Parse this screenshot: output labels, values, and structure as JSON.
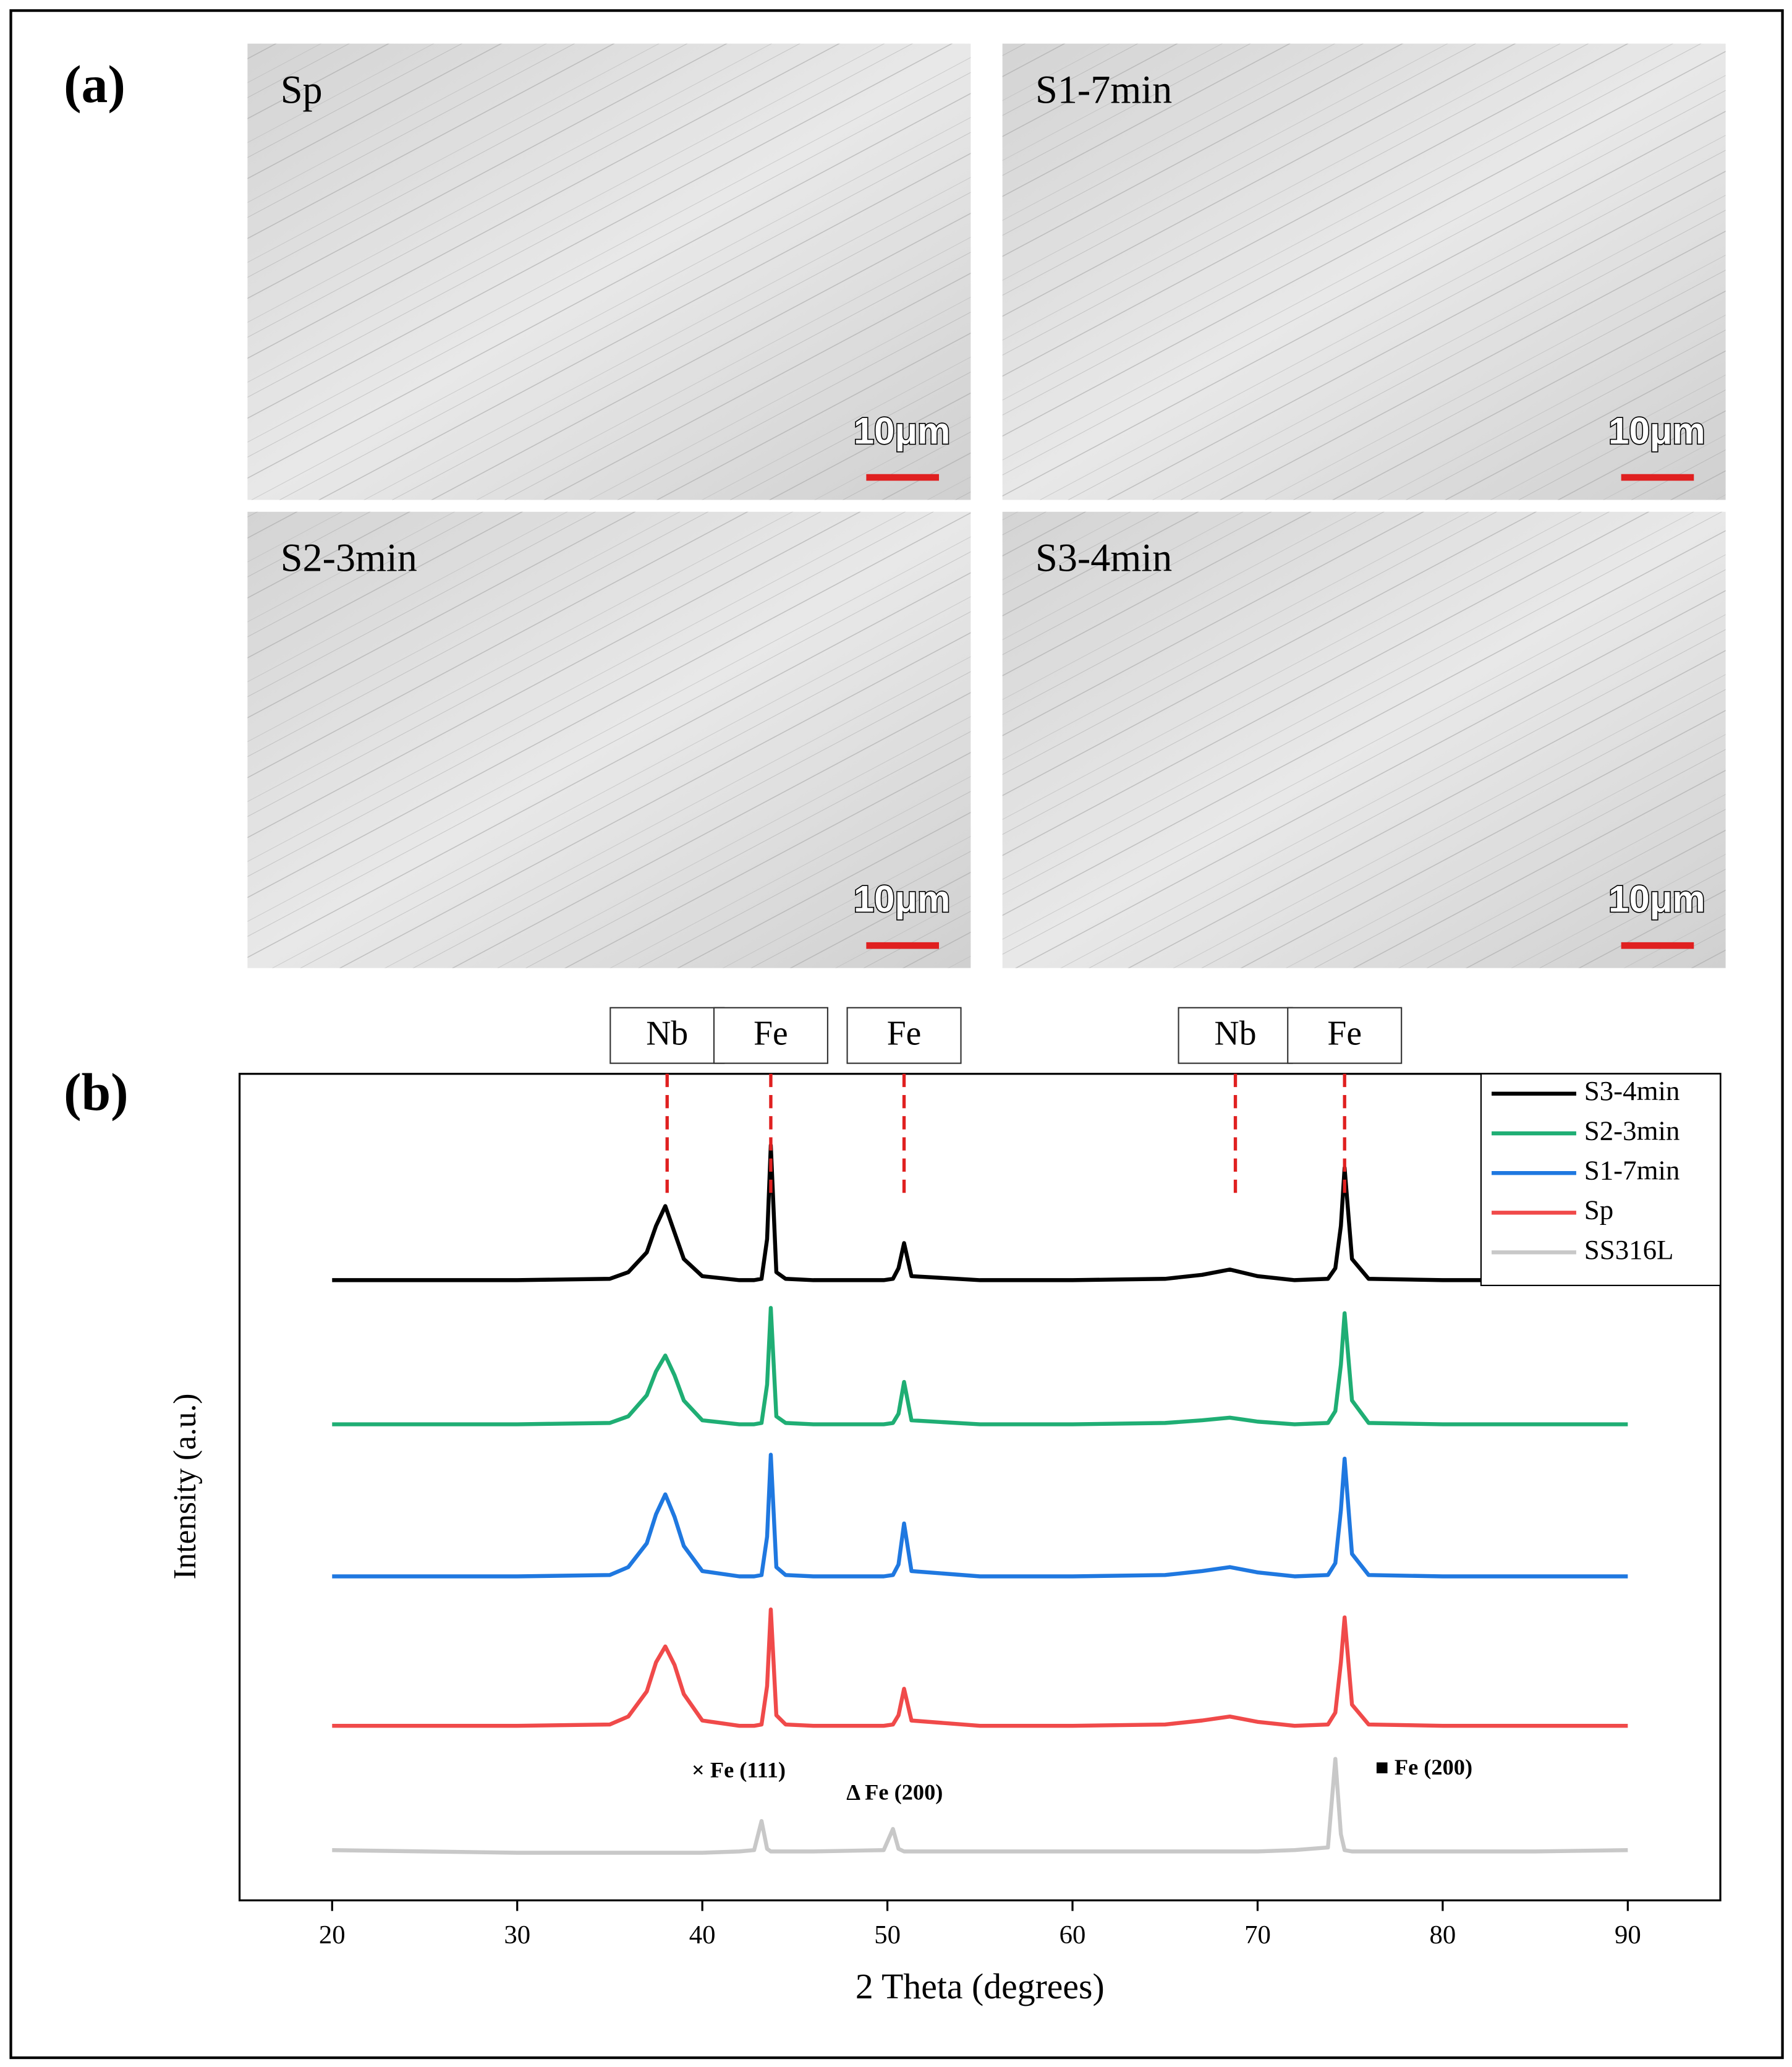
{
  "panel_a": {
    "label": "(a)",
    "images": [
      {
        "title": "Sp",
        "scale": "10μm"
      },
      {
        "title": "S1-7min",
        "scale": "10μm"
      },
      {
        "title": "S2-3min",
        "scale": "10μm"
      },
      {
        "title": "S3-4min",
        "scale": "10μm"
      }
    ]
  },
  "chart_data": {
    "type": "line",
    "panel_label": "(b)",
    "xlabel": "2 Theta (degrees)",
    "ylabel": "Intensity (a.u.)",
    "xlim": [
      15,
      95
    ],
    "xticks": [
      20,
      30,
      40,
      50,
      60,
      70,
      80,
      90
    ],
    "ylim": [
      0,
      625
    ],
    "x": [
      20,
      25,
      30,
      35,
      36,
      37,
      37.5,
      38,
      38.5,
      39,
      40,
      42,
      42.8,
      43.2,
      43.5,
      43.7,
      44,
      44.5,
      46,
      49.8,
      50.3,
      50.6,
      50.9,
      51.3,
      55,
      60,
      65,
      67,
      68.5,
      70,
      72,
      73.8,
      74.2,
      74.5,
      74.7,
      75.1,
      76,
      80,
      85,
      90
    ],
    "series": [
      {
        "name": "S3-4min",
        "color": "#000000",
        "values": [
          469,
          469,
          469,
          470,
          475,
          490,
          510,
          525,
          505,
          485,
          472,
          469,
          469,
          470,
          500,
          571,
          475,
          470,
          469,
          469,
          470,
          478,
          497,
          472,
          469,
          469,
          470,
          473,
          477,
          472,
          469,
          470,
          478,
          510,
          554,
          485,
          470,
          469,
          469,
          469
        ]
      },
      {
        "name": "S2-3min",
        "color": "#1fae74",
        "values": [
          360,
          360,
          360,
          361,
          366,
          382,
          400,
          412,
          397,
          378,
          363,
          360,
          360,
          361,
          390,
          448,
          366,
          361,
          360,
          360,
          361,
          368,
          392,
          363,
          360,
          360,
          361,
          363,
          365,
          362,
          360,
          361,
          370,
          405,
          444,
          378,
          361,
          360,
          360,
          360
        ]
      },
      {
        "name": "S1-7min",
        "color": "#1f78e0",
        "values": [
          245,
          245,
          245,
          246,
          252,
          270,
          292,
          307,
          290,
          268,
          249,
          245,
          245,
          246,
          275,
          337,
          252,
          246,
          245,
          245,
          246,
          254,
          285,
          249,
          245,
          245,
          246,
          249,
          252,
          248,
          245,
          246,
          255,
          295,
          334,
          262,
          246,
          245,
          245,
          245
        ]
      },
      {
        "name": "Sp",
        "color": "#f04a4a",
        "values": [
          132,
          132,
          132,
          133,
          139,
          158,
          180,
          192,
          178,
          156,
          136,
          132,
          132,
          133,
          162,
          220,
          140,
          133,
          132,
          132,
          133,
          140,
          160,
          136,
          132,
          132,
          133,
          136,
          139,
          135,
          132,
          133,
          142,
          180,
          214,
          148,
          133,
          132,
          132,
          132
        ]
      },
      {
        "name": "SS316L",
        "color": "#c8c8c8",
        "values": [
          38,
          37,
          36,
          36,
          36,
          36,
          36,
          36,
          36,
          36,
          36,
          37,
          38,
          60,
          39,
          37,
          37,
          37,
          37,
          38,
          54,
          39,
          37,
          37,
          37,
          37,
          37,
          37,
          37,
          37,
          38,
          40,
          107,
          50,
          38,
          37,
          37,
          37,
          37,
          38
        ]
      }
    ],
    "reference_lines": [
      {
        "label": "Nb",
        "x": 38.1
      },
      {
        "label": "Fe",
        "x": 43.7
      },
      {
        "label": "Fe",
        "x": 50.9
      },
      {
        "label": "Nb",
        "x": 68.8
      },
      {
        "label": "Fe",
        "x": 74.7
      }
    ],
    "annotations": [
      "× Fe (111)",
      "Δ Fe (200)",
      "■ Fe (200)"
    ],
    "legend": "upper right"
  }
}
